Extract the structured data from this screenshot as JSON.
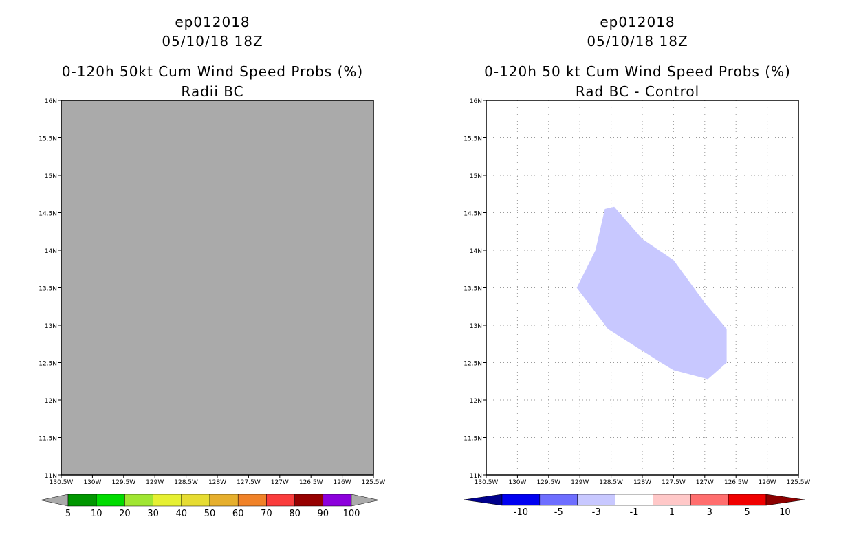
{
  "left_panel": {
    "storm_id": "ep012018",
    "datetime": "05/10/18 18Z",
    "product": "0-120h 50kt Cum Wind Speed Probs (%)",
    "subtitle": "Radii BC",
    "field_color": "#aaaaaa",
    "lat_labels": [
      "16N",
      "15.5N",
      "15N",
      "14.5N",
      "14N",
      "13.5N",
      "13N",
      "12.5N",
      "12N",
      "11.5N",
      "11N"
    ],
    "lon_labels": [
      "130.5W",
      "130W",
      "129.5W",
      "129W",
      "128.5W",
      "128W",
      "127.5W",
      "127W",
      "126.5W",
      "126W",
      "125.5W"
    ],
    "colorbar": {
      "colors": [
        "#009600",
        "#00dc00",
        "#a0e632",
        "#e6f032",
        "#e6dc32",
        "#e6af2d",
        "#f08228",
        "#fa3c3c",
        "#960000",
        "#8c00dc"
      ],
      "under_color": "#aaaaaa",
      "over_color": "#aaaaaa",
      "labels": [
        "5",
        "10",
        "20",
        "30",
        "40",
        "50",
        "60",
        "70",
        "80",
        "90",
        "100"
      ]
    }
  },
  "right_panel": {
    "storm_id": "ep012018",
    "datetime": "05/10/18 18Z",
    "product": "0-120h 50 kt Cum Wind Speed Probs (%)",
    "subtitle": "Rad BC - Control",
    "region_color": "#c8c8ff",
    "region_value_range": [
      -3,
      -1
    ],
    "region_polygon_lonlat": [
      [
        -129.05,
        13.5
      ],
      [
        -128.75,
        14.0
      ],
      [
        -128.6,
        14.55
      ],
      [
        -128.45,
        14.58
      ],
      [
        -128.0,
        14.15
      ],
      [
        -127.5,
        13.87
      ],
      [
        -127.0,
        13.3
      ],
      [
        -126.65,
        12.95
      ],
      [
        -126.65,
        12.5
      ],
      [
        -126.95,
        12.28
      ],
      [
        -127.5,
        12.4
      ],
      [
        -127.7,
        12.5
      ],
      [
        -128.55,
        12.95
      ]
    ],
    "lat_labels": [
      "16N",
      "15.5N",
      "15N",
      "14.5N",
      "14N",
      "13.5N",
      "13N",
      "12.5N",
      "12N",
      "11.5N",
      "11N"
    ],
    "lon_labels": [
      "130.5W",
      "130W",
      "129.5W",
      "129W",
      "128.5W",
      "128W",
      "127.5W",
      "127W",
      "126.5W",
      "126W",
      "125.5W"
    ],
    "colorbar": {
      "colors": [
        "#0000f0",
        "#6e6eff",
        "#c8c8ff",
        "#ffffff",
        "#ffc8c8",
        "#ff6e6e",
        "#f00000"
      ],
      "under_color": "#00008c",
      "over_color": "#8c0000",
      "labels": [
        "-10",
        "-5",
        "-3",
        "-1",
        "1",
        "3",
        "5",
        "10"
      ]
    }
  }
}
